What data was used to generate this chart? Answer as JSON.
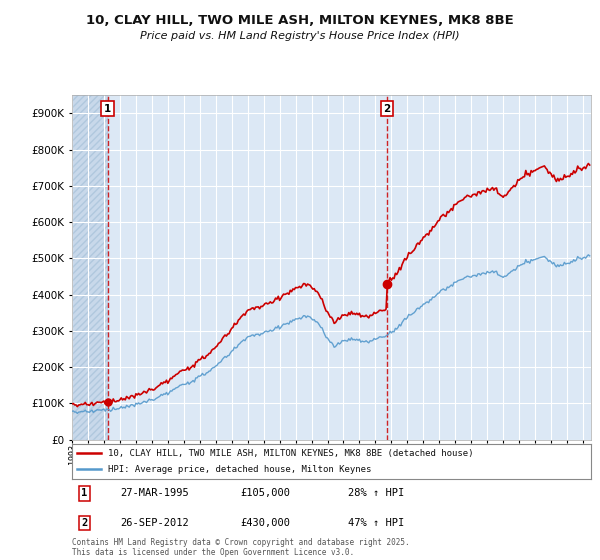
{
  "title": "10, CLAY HILL, TWO MILE ASH, MILTON KEYNES, MK8 8BE",
  "subtitle": "Price paid vs. HM Land Registry's House Price Index (HPI)",
  "sale1_date": "27-MAR-1995",
  "sale1_price": 105000,
  "sale1_label": "28% ↑ HPI",
  "sale2_date": "26-SEP-2012",
  "sale2_price": 430000,
  "sale2_label": "47% ↑ HPI",
  "legend_line1": "10, CLAY HILL, TWO MILE ASH, MILTON KEYNES, MK8 8BE (detached house)",
  "legend_line2": "HPI: Average price, detached house, Milton Keynes",
  "footer": "Contains HM Land Registry data © Crown copyright and database right 2025.\nThis data is licensed under the Open Government Licence v3.0.",
  "price_color": "#cc0000",
  "hpi_color": "#5599cc",
  "sale1_x": 1995.23,
  "sale2_x": 2012.73,
  "ylim_min": 0,
  "ylim_max": 950000,
  "xlim_min": 1993.0,
  "xlim_max": 2025.5,
  "background_plot": "#dce8f5",
  "background_hatch_color": "#c8d8ea",
  "grid_color": "#ffffff"
}
